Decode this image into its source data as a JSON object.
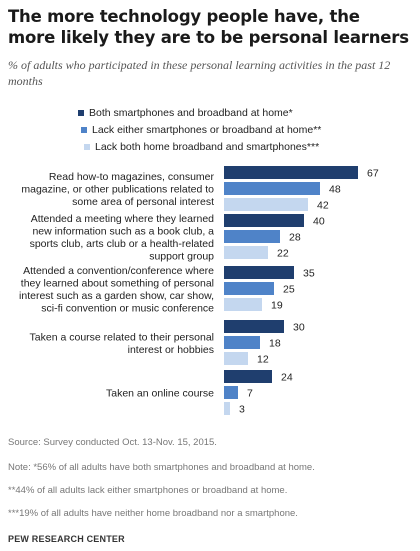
{
  "colors": {
    "series1": "#1f3e6e",
    "series2": "#4f83c8",
    "series3": "#c4d7ef"
  },
  "header": {
    "title": "The more technology people have, the more likely they are to be personal learners",
    "subtitle": "% of adults who participated in these personal learning activities in the past 12 months"
  },
  "legend": [
    "Both smartphones and broadband at home*",
    "Lack either smartphones or broadband at home**",
    "Lack both home broadband and smartphones***"
  ],
  "chart_data": {
    "type": "bar",
    "orientation": "horizontal",
    "categories": [
      [
        "Read how-to magazines, consumer",
        "magazine, or other publications related to",
        "some area of personal interest"
      ],
      [
        "Attended a meeting where they learned",
        "new information such as a book club, a",
        "sports club, arts club or a health-related",
        "support group"
      ],
      [
        "Attended a convention/conference where",
        "they learned about something of personal",
        "interest such as a garden show, car show,",
        "sci-fi convention or music conference"
      ],
      [
        "Taken a course related to their personal",
        "interest or hobbies"
      ],
      [
        "Taken an online course"
      ]
    ],
    "series": [
      {
        "name": "Both smartphones and broadband at home*",
        "values": [
          67,
          40,
          35,
          30,
          24
        ]
      },
      {
        "name": "Lack either smartphones or broadband at home**",
        "values": [
          48,
          28,
          25,
          18,
          7
        ]
      },
      {
        "name": "Lack both home broadband and smartphones***",
        "values": [
          42,
          22,
          19,
          12,
          3
        ]
      }
    ]
  },
  "footer": {
    "source": "Source: Survey conducted Oct. 13-Nov. 15, 2015.",
    "note1": "Note: *56% of all adults have both smartphones and broadband at home.",
    "note2": "**44% of all adults lack either smartphones or broadband at home.",
    "note3": "***19% of all adults have neither home broadband nor a smartphone.",
    "brand": "PEW RESEARCH CENTER"
  }
}
